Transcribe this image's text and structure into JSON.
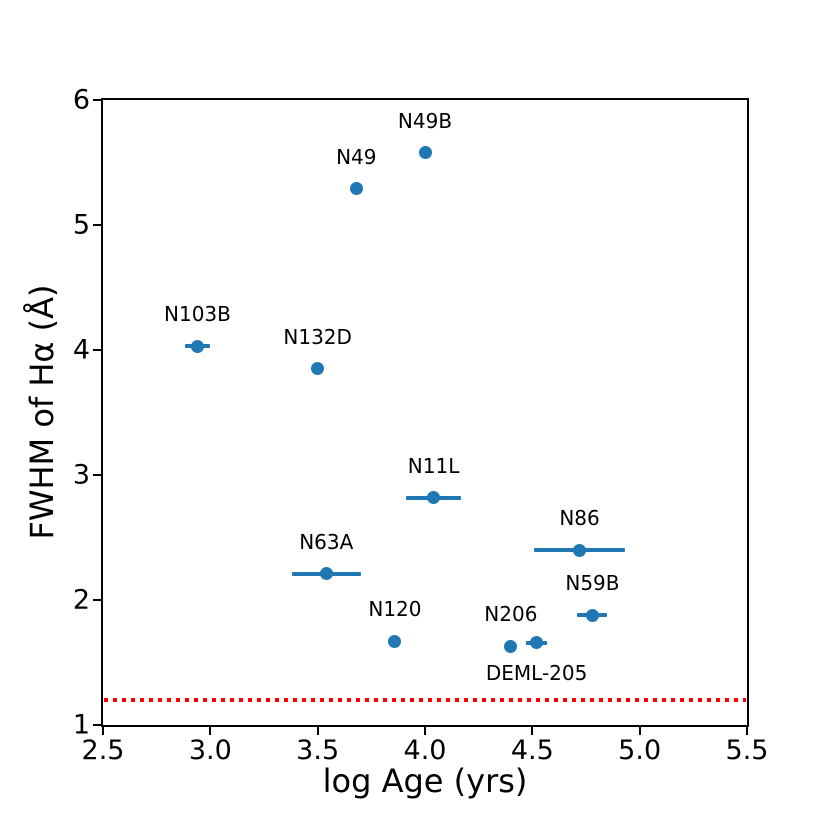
{
  "chart_data": {
    "type": "scatter",
    "title": "",
    "xlabel": "log Age (yrs)",
    "ylabel": "FWHM of Hα (Å)",
    "xlim": [
      2.5,
      5.5
    ],
    "ylim": [
      1,
      6
    ],
    "x_ticks": [
      2.5,
      3.0,
      3.5,
      4.0,
      4.5,
      5.0,
      5.5
    ],
    "x_tick_labels": [
      "2.5",
      "3.0",
      "3.5",
      "4.0",
      "4.5",
      "5.0",
      "5.5"
    ],
    "y_ticks": [
      1,
      2,
      3,
      4,
      5,
      6
    ],
    "y_tick_labels": [
      "1",
      "2",
      "3",
      "4",
      "5",
      "6"
    ],
    "grid": false,
    "legend": false,
    "marker_color": "#1f77b4",
    "points": [
      {
        "label": "N103B",
        "x": 2.94,
        "y": 4.03,
        "xerr": 0.06,
        "label_side": "above"
      },
      {
        "label": "N132D",
        "x": 3.5,
        "y": 3.85,
        "xerr": 0,
        "label_side": "above"
      },
      {
        "label": "N49",
        "x": 3.68,
        "y": 5.29,
        "xerr": 0,
        "label_side": "above"
      },
      {
        "label": "N49B",
        "x": 4.0,
        "y": 5.58,
        "xerr": 0,
        "label_side": "above"
      },
      {
        "label": "N63A",
        "x": 3.54,
        "y": 2.21,
        "xerr": 0.16,
        "label_side": "above"
      },
      {
        "label": "N11L",
        "x": 4.04,
        "y": 2.82,
        "xerr": 0.13,
        "label_side": "above"
      },
      {
        "label": "N120",
        "x": 3.86,
        "y": 1.67,
        "xerr": 0,
        "label_side": "above"
      },
      {
        "label": "N206",
        "x": 4.4,
        "y": 1.63,
        "xerr": 0,
        "label_side": "above"
      },
      {
        "label": "DEML-205",
        "x": 4.52,
        "y": 1.66,
        "xerr": 0.05,
        "label_side": "below"
      },
      {
        "label": "N86",
        "x": 4.72,
        "y": 2.4,
        "xerr": 0.21,
        "label_side": "above"
      },
      {
        "label": "N59B",
        "x": 4.78,
        "y": 1.88,
        "xerr": 0.07,
        "label_side": "above"
      }
    ],
    "reference_line": {
      "y": 1.2,
      "color": "#ff0000",
      "style": "dotted"
    }
  }
}
